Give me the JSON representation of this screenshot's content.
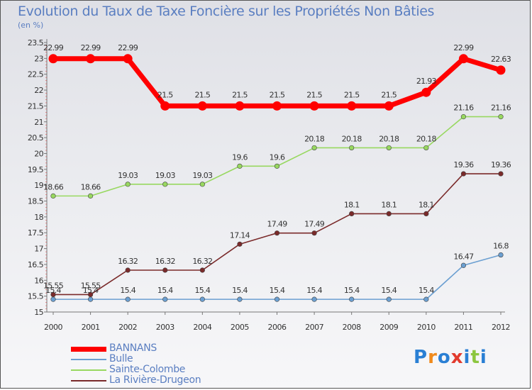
{
  "chart_data": {
    "type": "line",
    "title": "Evolution du Taux de Taxe Foncière sur les Propriétés Non Bâties",
    "unit_label": "(en %)",
    "xlabel": "",
    "ylabel": "",
    "ylim": [
      15,
      23.5
    ],
    "yticks": [
      "15",
      "15.5",
      "16",
      "16.5",
      "17",
      "17.5",
      "18",
      "18.5",
      "19",
      "19.5",
      "20",
      "20.5",
      "21",
      "21.5",
      "22",
      "22.5",
      "23",
      "23.5"
    ],
    "categories": [
      "2000",
      "2001",
      "2002",
      "2003",
      "2004",
      "2005",
      "2006",
      "2007",
      "2008",
      "2009",
      "2010",
      "2011",
      "2012"
    ],
    "grid": false,
    "legend_position": "bottom-left",
    "series": [
      {
        "name": "BANNANS",
        "color": "#ff0000",
        "values": [
          22.99,
          22.99,
          22.99,
          21.5,
          21.5,
          21.5,
          21.5,
          21.5,
          21.5,
          21.5,
          21.93,
          22.99,
          22.63
        ],
        "labels": [
          "22.99",
          "22.99",
          "22.99",
          "21.5",
          "21.5",
          "21.5",
          "21.5",
          "21.5",
          "21.5",
          "21.5",
          "21.93",
          "22.99",
          "22.63"
        ]
      },
      {
        "name": "Bulle",
        "color": "#6b9fd1",
        "values": [
          15.4,
          15.4,
          15.4,
          15.4,
          15.4,
          15.4,
          15.4,
          15.4,
          15.4,
          15.4,
          15.4,
          16.47,
          16.8
        ],
        "labels": [
          "15.4",
          "15.4",
          "15.4",
          "15.4",
          "15.4",
          "15.4",
          "15.4",
          "15.4",
          "15.4",
          "15.4",
          "15.4",
          "16.47",
          "16.8"
        ]
      },
      {
        "name": "Sainte-Colombe",
        "color": "#98d860",
        "values": [
          18.66,
          18.66,
          19.03,
          19.03,
          19.03,
          19.6,
          19.6,
          20.18,
          20.18,
          20.18,
          20.18,
          21.16,
          21.16
        ],
        "labels": [
          "18.66",
          "18.66",
          "19.03",
          "19.03",
          "19.03",
          "19.6",
          "19.6",
          "20.18",
          "20.18",
          "20.18",
          "20.18",
          "21.16",
          "21.16"
        ]
      },
      {
        "name": "La Rivière-Drugeon",
        "color": "#7a2a2a",
        "values": [
          15.55,
          15.55,
          16.32,
          16.32,
          16.32,
          17.14,
          17.49,
          17.49,
          18.1,
          18.1,
          18.1,
          19.36,
          19.36
        ],
        "labels": [
          "15.55",
          "15.55",
          "16.32",
          "16.32",
          "16.32",
          "17.14",
          "17.49",
          "17.49",
          "18.1",
          "18.1",
          "18.1",
          "19.36",
          "19.36"
        ]
      }
    ]
  },
  "brand": {
    "letters": [
      "P",
      "r",
      "o",
      "x",
      "i",
      "t",
      "i"
    ],
    "colors": [
      "#2a7fd4",
      "#f08a1c",
      "#2a7fd4",
      "#e23b2e",
      "#2a7fd4",
      "#8cc63f",
      "#2a7fd4"
    ]
  }
}
